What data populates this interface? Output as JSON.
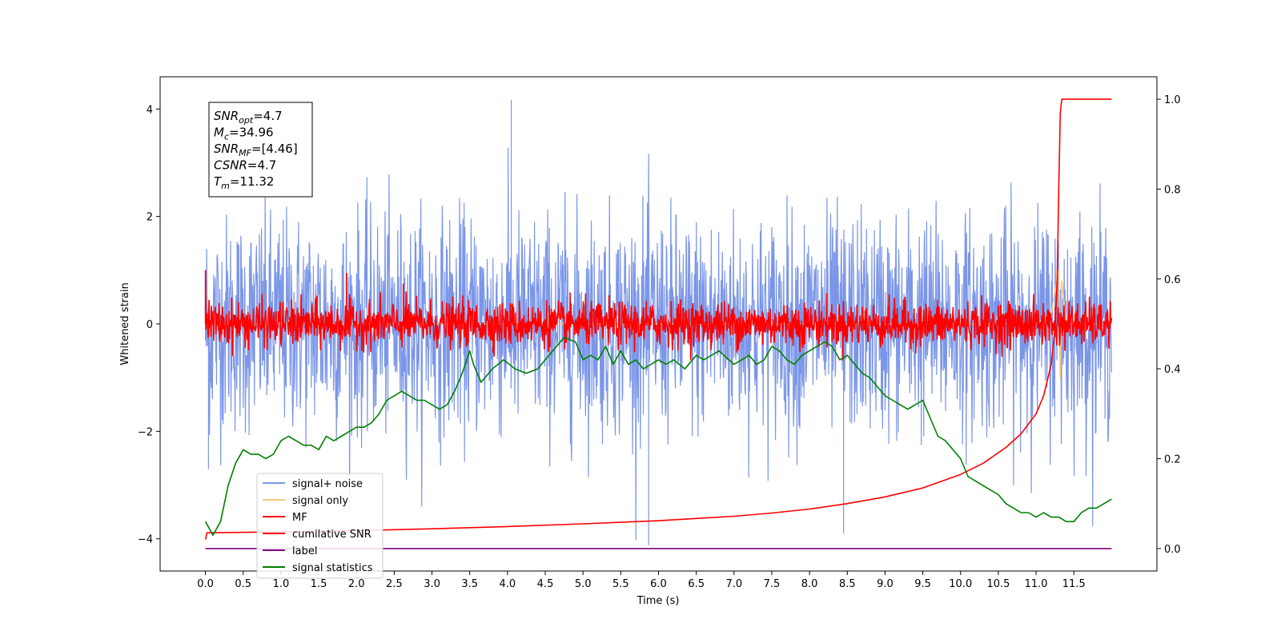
{
  "chart_data": {
    "type": "line",
    "xlabel": "Time (s)",
    "ylabel": "Whitened strain",
    "xlim": [
      -0.6,
      12.6
    ],
    "ylim": [
      -4.6,
      4.6
    ],
    "y2lim": [
      -0.05,
      1.05
    ],
    "x_ticks": [
      "0.0",
      "0.5",
      "1.0",
      "1.5",
      "2.0",
      "2.5",
      "3.0",
      "3.5",
      "4.0",
      "4.5",
      "5.0",
      "5.5",
      "6.0",
      "6.5",
      "7.0",
      "7.5",
      "8.0",
      "8.5",
      "9.0",
      "9.5",
      "10.0",
      "10.5",
      "11.0",
      "11.5"
    ],
    "y_ticks": [
      "4",
      "2",
      "0",
      "−2",
      "−4"
    ],
    "y2_ticks": [
      "1.0",
      "0.8",
      "0.6",
      "0.4",
      "0.2",
      "0.0"
    ],
    "legend_position": "lower-left",
    "annotation": {
      "lines": [
        {
          "sym": "SNR",
          "sub": "opt",
          "val": "=4.7"
        },
        {
          "sym": "M",
          "sub": "c",
          "val": "=34.96"
        },
        {
          "sym": "SNR",
          "sub": "MF",
          "val": "=[4.46]"
        },
        {
          "sym": "CSNR",
          "sub": "",
          "val": "=4.7"
        },
        {
          "sym": "T",
          "sub": "m",
          "val": "=11.32"
        }
      ]
    },
    "series": [
      {
        "name": "signal+ noise",
        "color": "#7b96e8",
        "axis": "left",
        "noise": {
          "x_start": 0.0,
          "x_end": 12.0,
          "amplitude_sd": 1.0,
          "peak": 4.17,
          "min": -4.12
        }
      },
      {
        "name": "signal only",
        "color": "#f7c97a",
        "axis": "left",
        "x": [
          0.0,
          11.0,
          11.2,
          11.3,
          11.32,
          11.34,
          11.4,
          12.0
        ],
        "y": [
          0.0,
          0.0,
          0.2,
          1.0,
          -1.0,
          0.8,
          0.0,
          0.0
        ]
      },
      {
        "name": "MF",
        "color": "#ff0000",
        "axis": "left",
        "noise": {
          "x_start": 0.0,
          "x_end": 12.0,
          "amplitude_sd": 0.2,
          "peak": 0.95,
          "first": 1.0
        }
      },
      {
        "name": "cumilative SNR",
        "color": "#ff0000",
        "axis": "right",
        "x": [
          0.0,
          0.02,
          1.0,
          2.0,
          3.0,
          4.0,
          5.0,
          6.0,
          7.0,
          7.5,
          8.0,
          8.5,
          9.0,
          9.5,
          10.0,
          10.3,
          10.6,
          10.8,
          11.0,
          11.1,
          11.2,
          11.25,
          11.28,
          11.3,
          11.32,
          11.34,
          12.0
        ],
        "y": [
          0.02,
          0.035,
          0.037,
          0.04,
          0.044,
          0.049,
          0.055,
          0.062,
          0.072,
          0.079,
          0.088,
          0.1,
          0.115,
          0.135,
          0.165,
          0.19,
          0.225,
          0.255,
          0.3,
          0.34,
          0.41,
          0.49,
          0.6,
          0.8,
          0.97,
          1.0,
          1.0
        ]
      },
      {
        "name": "label",
        "color": "#800080",
        "axis": "right",
        "x": [
          0.0,
          12.0
        ],
        "y": [
          0.0,
          0.0
        ]
      },
      {
        "name": "signal statistics",
        "color": "#008000",
        "axis": "right",
        "x": [
          0.0,
          0.1,
          0.2,
          0.3,
          0.4,
          0.5,
          0.6,
          0.7,
          0.8,
          0.9,
          1.0,
          1.1,
          1.2,
          1.3,
          1.4,
          1.5,
          1.6,
          1.7,
          1.8,
          1.9,
          2.0,
          2.1,
          2.2,
          2.3,
          2.4,
          2.5,
          2.6,
          2.7,
          2.8,
          2.9,
          3.0,
          3.1,
          3.2,
          3.3,
          3.4,
          3.5,
          3.55,
          3.65,
          3.8,
          3.95,
          4.1,
          4.25,
          4.4,
          4.5,
          4.6,
          4.75,
          4.9,
          5.0,
          5.1,
          5.2,
          5.3,
          5.4,
          5.5,
          5.6,
          5.7,
          5.8,
          5.9,
          6.0,
          6.1,
          6.2,
          6.35,
          6.5,
          6.6,
          6.8,
          7.0,
          7.1,
          7.2,
          7.3,
          7.4,
          7.5,
          7.6,
          7.7,
          7.8,
          7.9,
          8.0,
          8.1,
          8.2,
          8.3,
          8.4,
          8.5,
          8.6,
          8.7,
          8.8,
          8.9,
          9.0,
          9.1,
          9.2,
          9.3,
          9.4,
          9.5,
          9.6,
          9.7,
          9.8,
          9.9,
          10.0,
          10.1,
          10.2,
          10.3,
          10.4,
          10.5,
          10.6,
          10.7,
          10.8,
          10.9,
          11.0,
          11.1,
          11.2,
          11.3,
          11.4,
          11.5,
          11.6,
          11.7,
          11.8,
          11.9,
          12.0
        ],
        "y": [
          0.06,
          0.03,
          0.06,
          0.14,
          0.19,
          0.22,
          0.21,
          0.21,
          0.2,
          0.21,
          0.24,
          0.25,
          0.24,
          0.23,
          0.23,
          0.22,
          0.25,
          0.24,
          0.25,
          0.26,
          0.27,
          0.27,
          0.28,
          0.3,
          0.33,
          0.34,
          0.35,
          0.34,
          0.33,
          0.33,
          0.32,
          0.31,
          0.32,
          0.35,
          0.39,
          0.44,
          0.41,
          0.37,
          0.4,
          0.42,
          0.4,
          0.39,
          0.4,
          0.42,
          0.44,
          0.47,
          0.46,
          0.42,
          0.43,
          0.42,
          0.45,
          0.41,
          0.44,
          0.41,
          0.42,
          0.4,
          0.41,
          0.42,
          0.41,
          0.42,
          0.4,
          0.43,
          0.42,
          0.44,
          0.41,
          0.42,
          0.43,
          0.41,
          0.42,
          0.45,
          0.44,
          0.42,
          0.41,
          0.43,
          0.44,
          0.45,
          0.46,
          0.45,
          0.42,
          0.43,
          0.41,
          0.39,
          0.38,
          0.36,
          0.34,
          0.33,
          0.32,
          0.31,
          0.32,
          0.33,
          0.29,
          0.25,
          0.24,
          0.22,
          0.2,
          0.16,
          0.15,
          0.14,
          0.13,
          0.12,
          0.1,
          0.09,
          0.08,
          0.08,
          0.07,
          0.08,
          0.07,
          0.07,
          0.06,
          0.06,
          0.08,
          0.09,
          0.09,
          0.1,
          0.11
        ]
      }
    ]
  }
}
